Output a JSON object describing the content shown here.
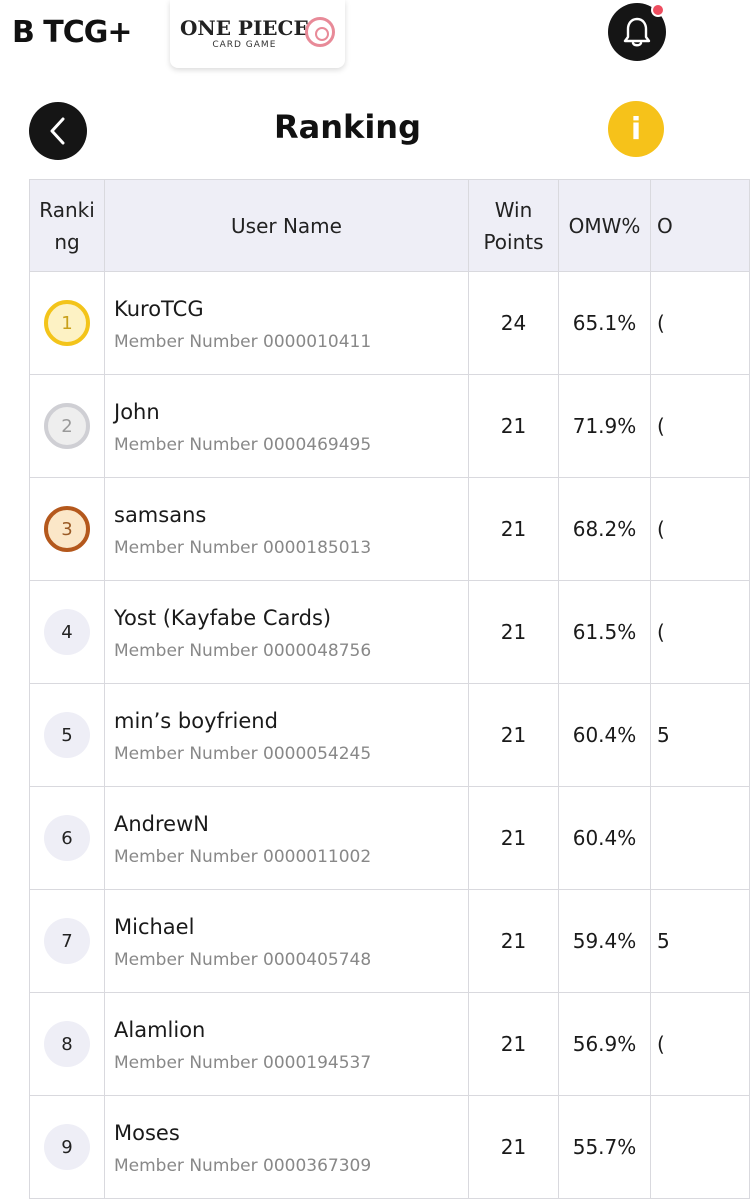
{
  "header": {
    "brand": "B TCG+",
    "game_title": "ONE PIECE",
    "game_subtitle": "CARD GAME",
    "page_title": "Ranking",
    "info_label": "i"
  },
  "table": {
    "columns": [
      "Ranki ng",
      "User Name",
      "Win Points",
      "OMW%",
      "O"
    ],
    "rows": [
      {
        "rank": "1",
        "medal": "gold",
        "name": "KuroTCG",
        "member": "Member Number 0000010411",
        "win_points": "24",
        "omw": "65.1%",
        "next": "("
      },
      {
        "rank": "2",
        "medal": "silver",
        "name": "John",
        "member": "Member Number 0000469495",
        "win_points": "21",
        "omw": "71.9%",
        "next": "("
      },
      {
        "rank": "3",
        "medal": "bronze",
        "name": "samsans",
        "member": "Member Number 0000185013",
        "win_points": "21",
        "omw": "68.2%",
        "next": "("
      },
      {
        "rank": "4",
        "medal": "plain",
        "name": "Yost (Kayfabe Cards)",
        "member": "Member Number 0000048756",
        "win_points": "21",
        "omw": "61.5%",
        "next": "("
      },
      {
        "rank": "5",
        "medal": "plain",
        "name": "min’s boyfriend",
        "member": "Member Number 0000054245",
        "win_points": "21",
        "omw": "60.4%",
        "next": "5"
      },
      {
        "rank": "6",
        "medal": "plain",
        "name": "AndrewN",
        "member": "Member Number 0000011002",
        "win_points": "21",
        "omw": "60.4%",
        "next": ""
      },
      {
        "rank": "7",
        "medal": "plain",
        "name": "Michael",
        "member": "Member Number 0000405748",
        "win_points": "21",
        "omw": "59.4%",
        "next": "5"
      },
      {
        "rank": "8",
        "medal": "plain",
        "name": "Alamlion",
        "member": "Member Number 0000194537",
        "win_points": "21",
        "omw": "56.9%",
        "next": "("
      },
      {
        "rank": "9",
        "medal": "plain",
        "name": "Moses",
        "member": "Member Number 0000367309",
        "win_points": "21",
        "omw": "55.7%",
        "next": ""
      }
    ]
  },
  "colors": {
    "gold": "#f3c41a",
    "silver": "#cfcfd4",
    "bronze": "#b4581c",
    "info": "#f6c21a",
    "notification_dot": "#ee4d5f"
  }
}
